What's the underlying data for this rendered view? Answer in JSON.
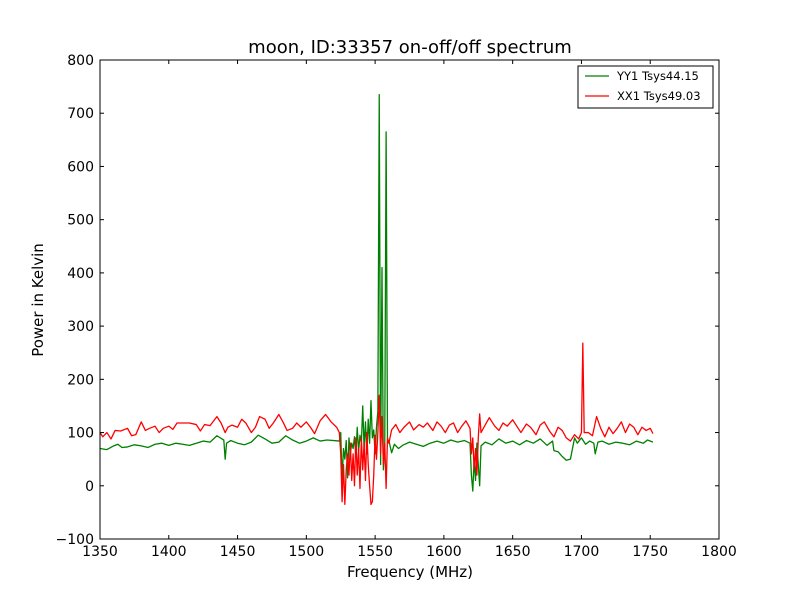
{
  "chart_data": {
    "type": "line",
    "title": "moon, ID:33357 on-off/off spectrum",
    "xlabel": "Frequency (MHz)",
    "ylabel": "Power in Kelvin",
    "xlim": [
      1350,
      1800
    ],
    "ylim": [
      -100,
      800
    ],
    "xticks": [
      1350,
      1400,
      1450,
      1500,
      1550,
      1600,
      1650,
      1700,
      1750,
      1800
    ],
    "yticks": [
      -100,
      0,
      100,
      200,
      300,
      400,
      500,
      600,
      700,
      800
    ],
    "ytick_labels": [
      "−100",
      "0",
      "100",
      "200",
      "300",
      "400",
      "500",
      "600",
      "700",
      "800"
    ],
    "grid": false,
    "legend_position": "top-right",
    "series": [
      {
        "name": "YY1 Tsys44.15",
        "color": "#008000",
        "points": [
          [
            1350,
            70
          ],
          [
            1355,
            68
          ],
          [
            1360,
            75
          ],
          [
            1363,
            78
          ],
          [
            1366,
            72
          ],
          [
            1370,
            73
          ],
          [
            1375,
            77
          ],
          [
            1380,
            75
          ],
          [
            1385,
            72
          ],
          [
            1390,
            78
          ],
          [
            1395,
            80
          ],
          [
            1400,
            76
          ],
          [
            1405,
            80
          ],
          [
            1410,
            78
          ],
          [
            1415,
            76
          ],
          [
            1420,
            80
          ],
          [
            1425,
            84
          ],
          [
            1430,
            82
          ],
          [
            1435,
            94
          ],
          [
            1440,
            86
          ],
          [
            1441,
            50
          ],
          [
            1442,
            80
          ],
          [
            1445,
            85
          ],
          [
            1450,
            80
          ],
          [
            1455,
            77
          ],
          [
            1460,
            82
          ],
          [
            1465,
            95
          ],
          [
            1470,
            88
          ],
          [
            1475,
            80
          ],
          [
            1480,
            82
          ],
          [
            1485,
            94
          ],
          [
            1490,
            86
          ],
          [
            1495,
            80
          ],
          [
            1500,
            84
          ],
          [
            1505,
            90
          ],
          [
            1510,
            84
          ],
          [
            1515,
            86
          ],
          [
            1520,
            85
          ],
          [
            1524,
            84
          ],
          [
            1525,
            100
          ],
          [
            1526,
            10
          ],
          [
            1527,
            70
          ],
          [
            1528,
            50
          ],
          [
            1529,
            85
          ],
          [
            1530,
            15
          ],
          [
            1531,
            90
          ],
          [
            1532,
            60
          ],
          [
            1533,
            80
          ],
          [
            1534,
            70
          ],
          [
            1535,
            92
          ],
          [
            1536,
            55
          ],
          [
            1537,
            110
          ],
          [
            1538,
            65
          ],
          [
            1539,
            95
          ],
          [
            1540,
            80
          ],
          [
            1541,
            150
          ],
          [
            1542,
            70
          ],
          [
            1543,
            120
          ],
          [
            1544,
            60
          ],
          [
            1545,
            125
          ],
          [
            1546,
            80
          ],
          [
            1547,
            160
          ],
          [
            1548,
            90
          ],
          [
            1549,
            105
          ],
          [
            1550,
            60
          ],
          [
            1551,
            110
          ],
          [
            1552,
            140
          ],
          [
            1553,
            735
          ],
          [
            1554,
            40
          ],
          [
            1555,
            410
          ],
          [
            1556,
            30
          ],
          [
            1557,
            70
          ],
          [
            1558,
            665
          ],
          [
            1559,
            80
          ],
          [
            1560,
            85
          ],
          [
            1562,
            62
          ],
          [
            1564,
            78
          ],
          [
            1567,
            70
          ],
          [
            1570,
            76
          ],
          [
            1575,
            82
          ],
          [
            1580,
            78
          ],
          [
            1585,
            74
          ],
          [
            1590,
            80
          ],
          [
            1595,
            84
          ],
          [
            1600,
            80
          ],
          [
            1605,
            86
          ],
          [
            1610,
            82
          ],
          [
            1615,
            85
          ],
          [
            1619,
            80
          ],
          [
            1620,
            20
          ],
          [
            1621,
            -10
          ],
          [
            1622,
            50
          ],
          [
            1623,
            10
          ],
          [
            1624,
            80
          ],
          [
            1625,
            40
          ],
          [
            1626,
            0
          ],
          [
            1627,
            75
          ],
          [
            1630,
            82
          ],
          [
            1635,
            77
          ],
          [
            1640,
            88
          ],
          [
            1645,
            80
          ],
          [
            1650,
            84
          ],
          [
            1655,
            77
          ],
          [
            1660,
            85
          ],
          [
            1665,
            80
          ],
          [
            1670,
            88
          ],
          [
            1675,
            76
          ],
          [
            1679,
            84
          ],
          [
            1680,
            66
          ],
          [
            1683,
            64
          ],
          [
            1686,
            55
          ],
          [
            1689,
            48
          ],
          [
            1692,
            50
          ],
          [
            1695,
            90
          ],
          [
            1697,
            80
          ],
          [
            1700,
            90
          ],
          [
            1703,
            78
          ],
          [
            1706,
            84
          ],
          [
            1709,
            80
          ],
          [
            1710,
            60
          ],
          [
            1712,
            82
          ],
          [
            1715,
            84
          ],
          [
            1720,
            78
          ],
          [
            1725,
            82
          ],
          [
            1730,
            80
          ],
          [
            1735,
            77
          ],
          [
            1740,
            84
          ],
          [
            1745,
            80
          ],
          [
            1748,
            86
          ],
          [
            1752,
            82
          ]
        ]
      },
      {
        "name": "XX1 Tsys49.03",
        "color": "#ff0000",
        "points": [
          [
            1350,
            100
          ],
          [
            1352,
            92
          ],
          [
            1355,
            100
          ],
          [
            1358,
            88
          ],
          [
            1361,
            104
          ],
          [
            1365,
            103
          ],
          [
            1370,
            108
          ],
          [
            1373,
            94
          ],
          [
            1376,
            96
          ],
          [
            1380,
            120
          ],
          [
            1383,
            104
          ],
          [
            1386,
            108
          ],
          [
            1390,
            112
          ],
          [
            1393,
            100
          ],
          [
            1396,
            108
          ],
          [
            1400,
            112
          ],
          [
            1403,
            106
          ],
          [
            1406,
            118
          ],
          [
            1410,
            118
          ],
          [
            1415,
            118
          ],
          [
            1420,
            115
          ],
          [
            1423,
            103
          ],
          [
            1426,
            115
          ],
          [
            1430,
            113
          ],
          [
            1435,
            130
          ],
          [
            1438,
            118
          ],
          [
            1441,
            100
          ],
          [
            1443,
            110
          ],
          [
            1446,
            114
          ],
          [
            1450,
            110
          ],
          [
            1453,
            125
          ],
          [
            1456,
            118
          ],
          [
            1460,
            100
          ],
          [
            1463,
            110
          ],
          [
            1466,
            130
          ],
          [
            1470,
            125
          ],
          [
            1473,
            108
          ],
          [
            1476,
            118
          ],
          [
            1480,
            134
          ],
          [
            1483,
            120
          ],
          [
            1486,
            104
          ],
          [
            1490,
            108
          ],
          [
            1493,
            118
          ],
          [
            1496,
            110
          ],
          [
            1500,
            120
          ],
          [
            1503,
            110
          ],
          [
            1506,
            98
          ],
          [
            1510,
            122
          ],
          [
            1514,
            134
          ],
          [
            1518,
            120
          ],
          [
            1522,
            110
          ],
          [
            1524,
            100
          ],
          [
            1525,
            60
          ],
          [
            1526,
            -30
          ],
          [
            1527,
            40
          ],
          [
            1528,
            -35
          ],
          [
            1529,
            30
          ],
          [
            1530,
            60
          ],
          [
            1531,
            20
          ],
          [
            1532,
            80
          ],
          [
            1533,
            10
          ],
          [
            1534,
            60
          ],
          [
            1535,
            0
          ],
          [
            1536,
            90
          ],
          [
            1537,
            20
          ],
          [
            1538,
            70
          ],
          [
            1539,
            -5
          ],
          [
            1540,
            90
          ],
          [
            1541,
            30
          ],
          [
            1542,
            80
          ],
          [
            1543,
            10
          ],
          [
            1544,
            100
          ],
          [
            1545,
            40
          ],
          [
            1546,
            0
          ],
          [
            1547,
            -35
          ],
          [
            1548,
            -30
          ],
          [
            1549,
            20
          ],
          [
            1550,
            95
          ],
          [
            1551,
            50
          ],
          [
            1552,
            100
          ],
          [
            1553,
            170
          ],
          [
            1554,
            60
          ],
          [
            1555,
            130
          ],
          [
            1556,
            40
          ],
          [
            1557,
            80
          ],
          [
            1558,
            -5
          ],
          [
            1559,
            90
          ],
          [
            1560,
            80
          ],
          [
            1562,
            105
          ],
          [
            1565,
            115
          ],
          [
            1568,
            100
          ],
          [
            1571,
            110
          ],
          [
            1575,
            120
          ],
          [
            1578,
            105
          ],
          [
            1582,
            115
          ],
          [
            1585,
            110
          ],
          [
            1588,
            118
          ],
          [
            1592,
            104
          ],
          [
            1595,
            120
          ],
          [
            1598,
            112
          ],
          [
            1601,
            100
          ],
          [
            1604,
            114
          ],
          [
            1607,
            118
          ],
          [
            1610,
            100
          ],
          [
            1613,
            112
          ],
          [
            1616,
            122
          ],
          [
            1619,
            108
          ],
          [
            1620,
            60
          ],
          [
            1621,
            90
          ],
          [
            1622,
            30
          ],
          [
            1623,
            70
          ],
          [
            1624,
            20
          ],
          [
            1625,
            90
          ],
          [
            1626,
            135
          ],
          [
            1627,
            100
          ],
          [
            1630,
            114
          ],
          [
            1633,
            128
          ],
          [
            1637,
            112
          ],
          [
            1640,
            104
          ],
          [
            1643,
            118
          ],
          [
            1646,
            112
          ],
          [
            1650,
            124
          ],
          [
            1653,
            112
          ],
          [
            1656,
            100
          ],
          [
            1660,
            116
          ],
          [
            1663,
            110
          ],
          [
            1667,
            96
          ],
          [
            1670,
            114
          ],
          [
            1673,
            120
          ],
          [
            1677,
            102
          ],
          [
            1680,
            92
          ],
          [
            1683,
            110
          ],
          [
            1686,
            104
          ],
          [
            1689,
            90
          ],
          [
            1692,
            84
          ],
          [
            1695,
            96
          ],
          [
            1698,
            88
          ],
          [
            1700,
            100
          ],
          [
            1701,
            268
          ],
          [
            1702,
            100
          ],
          [
            1705,
            100
          ],
          [
            1708,
            94
          ],
          [
            1711,
            130
          ],
          [
            1714,
            108
          ],
          [
            1717,
            92
          ],
          [
            1720,
            110
          ],
          [
            1723,
            98
          ],
          [
            1726,
            108
          ],
          [
            1729,
            120
          ],
          [
            1732,
            100
          ],
          [
            1735,
            116
          ],
          [
            1738,
            110
          ],
          [
            1741,
            96
          ],
          [
            1744,
            110
          ],
          [
            1747,
            104
          ],
          [
            1750,
            108
          ],
          [
            1752,
            98
          ]
        ]
      }
    ]
  }
}
